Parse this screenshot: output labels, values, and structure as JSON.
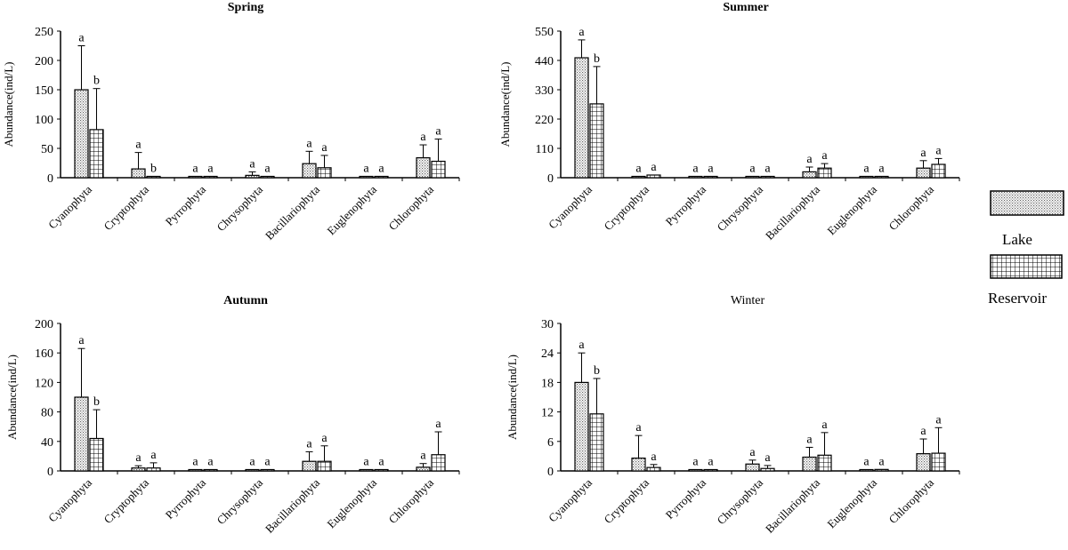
{
  "legend": {
    "lake_label": "Lake",
    "reservoir_label": "Reservoir"
  },
  "chart_data": [
    {
      "type": "bar",
      "title": "Spring",
      "ylabel": "Abundance(ind/L)",
      "xlabel": "",
      "ylim": [
        0,
        250
      ],
      "yticks": [
        0,
        50,
        100,
        150,
        200,
        250
      ],
      "categories": [
        "Cyanophyta",
        "Cryptophyta",
        "Pyrrophyta",
        "Chrysophyta",
        "Bacillariophyta",
        "Euglenophyta",
        "Chlorophyta"
      ],
      "series": [
        {
          "name": "Lake",
          "values": [
            150,
            15,
            1,
            4,
            24,
            1,
            34
          ],
          "errors": [
            75,
            28,
            0,
            6,
            21,
            0,
            22
          ],
          "letters": [
            "a",
            "a",
            "a",
            "a",
            "a",
            "a",
            "a"
          ]
        },
        {
          "name": "Reservoir",
          "values": [
            82,
            1,
            1,
            1,
            17,
            1,
            28
          ],
          "errors": [
            70,
            0,
            0,
            0,
            21,
            0,
            38
          ],
          "letters": [
            "b",
            "b",
            "a",
            "a",
            "a",
            "a",
            "a"
          ]
        }
      ]
    },
    {
      "type": "bar",
      "title": "Summer",
      "ylabel": "Abundance(ind/L)",
      "xlabel": "",
      "ylim": [
        0,
        550
      ],
      "yticks": [
        0,
        110,
        220,
        330,
        440,
        550
      ],
      "categories": [
        "Cyanophyta",
        "Cryptophyta",
        "Pyrrophyta",
        "Chrysophyta",
        "Bacillariophyta",
        "Euglenophyta",
        "Chlorophyta"
      ],
      "series": [
        {
          "name": "Lake",
          "values": [
            450,
            5,
            3,
            3,
            22,
            3,
            36
          ],
          "errors": [
            67,
            0,
            0,
            0,
            18,
            0,
            28
          ],
          "letters": [
            "a",
            "a",
            "a",
            "a",
            "a",
            "a",
            "a"
          ]
        },
        {
          "name": "Reservoir",
          "values": [
            277,
            10,
            3,
            3,
            36,
            4,
            50
          ],
          "errors": [
            140,
            0,
            0,
            0,
            17,
            0,
            22
          ],
          "letters": [
            "b",
            "a",
            "a",
            "a",
            "a",
            "a",
            "a"
          ]
        }
      ]
    },
    {
      "type": "bar",
      "title": "Autumn",
      "ylabel": "Abundance(ind/L)",
      "xlabel": "",
      "ylim": [
        0,
        200
      ],
      "yticks": [
        0,
        40,
        80,
        120,
        160,
        200
      ],
      "categories": [
        "Cyanophyta",
        "Cryptophyta",
        "Pyrrophyta",
        "Chrysophyta",
        "Bacillariophyta",
        "Euglenophyta",
        "Chlorophyta"
      ],
      "series": [
        {
          "name": "Lake",
          "values": [
            100,
            4,
            1,
            1,
            13,
            1,
            5
          ],
          "errors": [
            66,
            3,
            0,
            0,
            13,
            0,
            5
          ],
          "letters": [
            "a",
            "a",
            "a",
            "a",
            "a",
            "a",
            "a"
          ]
        },
        {
          "name": "Reservoir",
          "values": [
            44,
            4,
            0,
            0,
            13,
            1,
            22
          ],
          "errors": [
            39,
            7,
            0,
            0,
            21,
            0,
            31
          ],
          "letters": [
            "b",
            "a",
            "a",
            "a",
            "a",
            "a",
            "a"
          ]
        }
      ]
    },
    {
      "type": "bar",
      "title": "Winter",
      "ylabel": "Abundance(ind/L)",
      "xlabel": "",
      "ylim": [
        0,
        30
      ],
      "yticks": [
        0,
        6,
        12,
        18,
        24,
        30
      ],
      "categories": [
        "Cyanophyta",
        "Cryptophyta",
        "Pyrrophyta",
        "Chrysophyta",
        "Bacillariophyta",
        "Euglenophyta",
        "Chlorophyta"
      ],
      "series": [
        {
          "name": "Lake",
          "values": [
            18,
            2.6,
            0.1,
            1.4,
            2.8,
            0.1,
            3.5
          ],
          "errors": [
            6,
            4.6,
            0,
            0.8,
            2,
            0,
            3
          ],
          "letters": [
            "a",
            "a",
            "a",
            "a",
            "a",
            "a",
            "a"
          ]
        },
        {
          "name": "Reservoir",
          "values": [
            11.6,
            0.7,
            0.2,
            0.5,
            3.2,
            0.3,
            3.6
          ],
          "errors": [
            7.2,
            0.6,
            0,
            0.6,
            4.6,
            0,
            5.2
          ],
          "letters": [
            "b",
            "a",
            "a",
            "a",
            "a",
            "a",
            "a"
          ]
        }
      ]
    }
  ]
}
